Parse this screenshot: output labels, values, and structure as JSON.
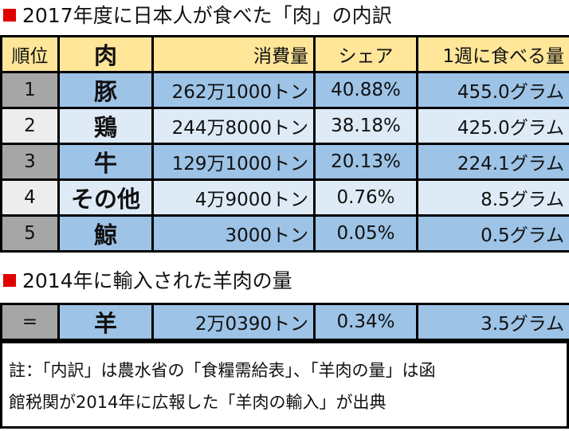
{
  "header": {
    "title": "2017年度に日本人が食べた「肉」の内訳"
  },
  "table": {
    "columns": [
      "順位",
      "肉",
      "消費量",
      "シェア",
      "1週に食べる量"
    ],
    "rows": [
      [
        "1",
        "豚",
        "262万1000トン",
        "40.88%",
        "455.0グラム"
      ],
      [
        "2",
        "鶏",
        "244万8000トン",
        "38.18%",
        "425.0グラム"
      ],
      [
        "3",
        "牛",
        "129万1000トン",
        "20.13%",
        "224.1グラム"
      ],
      [
        "4",
        "その他",
        "4万9000トン",
        "0.76%",
        "8.5グラム"
      ],
      [
        "5",
        "鯨",
        "3000トン",
        "0.05%",
        "0.5グラム"
      ]
    ]
  },
  "section2": {
    "title": "2014年に輸入された羊肉の量",
    "row": [
      "=",
      "羊",
      "2万0390トン",
      "0.34%",
      "3.5グラム"
    ]
  },
  "note": {
    "lines": [
      "註：「内訳」は農水省の「食糧需給表」、「羊肉の量」は函",
      "館税関が2014年に広報した「羊肉の輸入」が出典"
    ]
  }
}
